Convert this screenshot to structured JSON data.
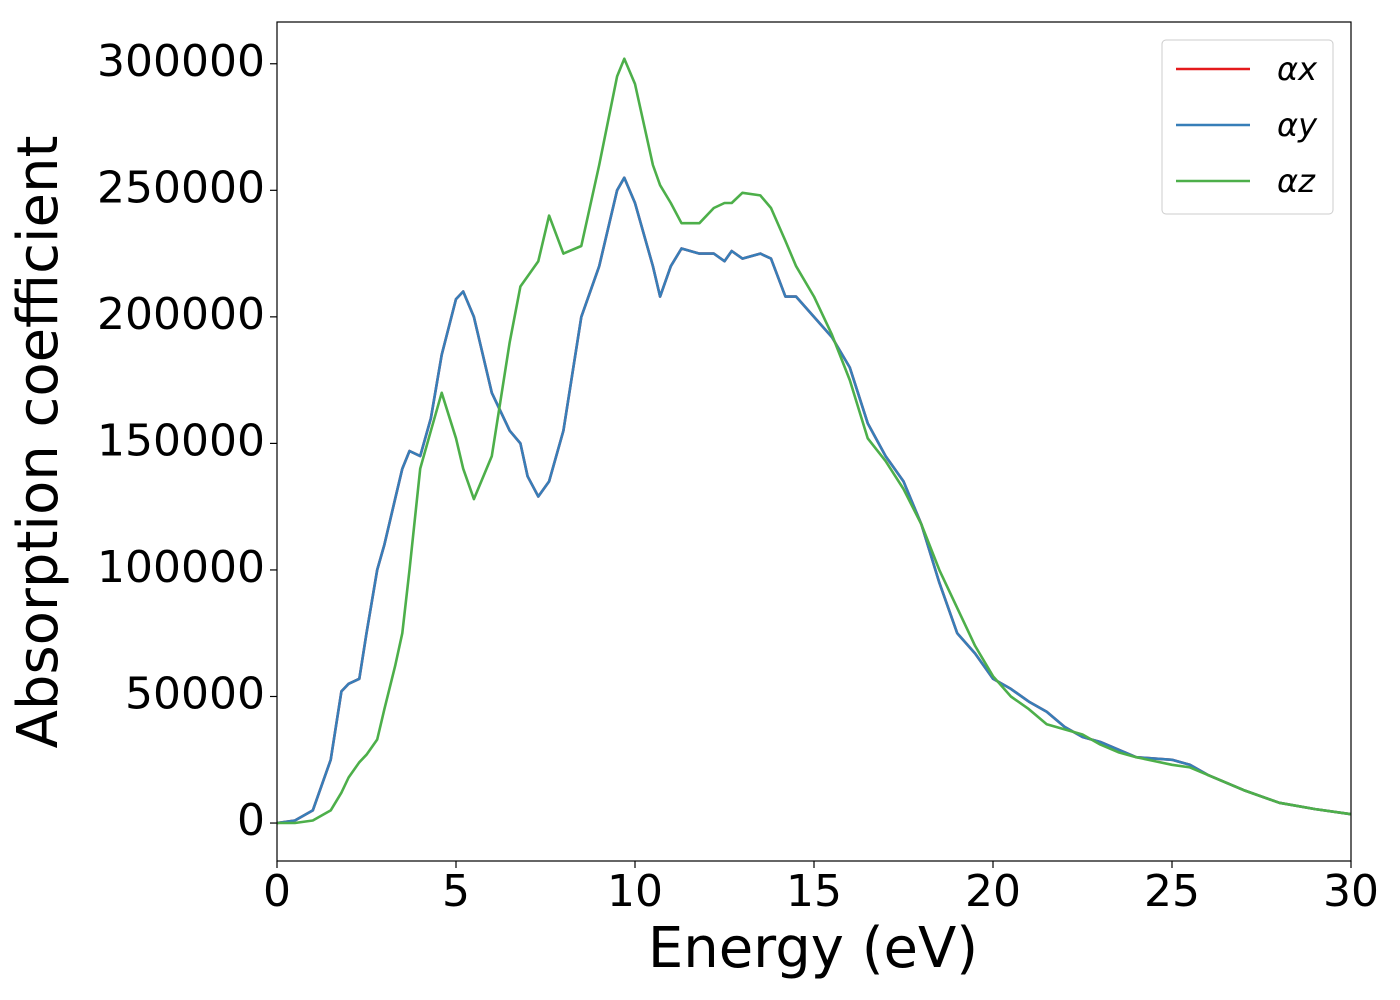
{
  "chart_data": {
    "type": "line",
    "xlabel": "Energy (eV)",
    "ylabel": "Absorption coefficient",
    "x": [
      0,
      0.5,
      1,
      1.5,
      1.8,
      2,
      2.3,
      2.5,
      2.8,
      3,
      3.3,
      3.5,
      3.7,
      4,
      4.3,
      4.6,
      5,
      5.2,
      5.5,
      6,
      6.5,
      6.8,
      7,
      7.3,
      7.6,
      8,
      8.5,
      9,
      9.5,
      9.7,
      10,
      10.5,
      10.7,
      11,
      11.3,
      11.8,
      12.2,
      12.5,
      12.7,
      13,
      13.5,
      13.8,
      14.2,
      14.5,
      15,
      15.5,
      16,
      16.5,
      17,
      17.5,
      18,
      18.5,
      19,
      19.5,
      20,
      20.5,
      21,
      21.5,
      22,
      22.5,
      23,
      23.5,
      24,
      25,
      25.5,
      26,
      27,
      28,
      29,
      30
    ],
    "series": [
      {
        "name": "αx",
        "color": "#e41a1c",
        "values": [
          0,
          1000,
          5000,
          25000,
          52000,
          55000,
          57000,
          75000,
          100000,
          110000,
          128000,
          140000,
          147000,
          145000,
          160000,
          185000,
          207000,
          210000,
          200000,
          170000,
          155000,
          150000,
          137000,
          129000,
          135000,
          155000,
          200000,
          220000,
          250000,
          255000,
          245000,
          220000,
          208000,
          220000,
          227000,
          225000,
          225000,
          222000,
          226000,
          223000,
          225000,
          223000,
          208000,
          208000,
          200000,
          192000,
          180000,
          158000,
          145000,
          135000,
          118000,
          95000,
          75000,
          67000,
          57000,
          53000,
          48000,
          44000,
          38000,
          34000,
          32000,
          29000,
          26000,
          25000,
          23000,
          19000,
          13000,
          8000,
          5500,
          3500
        ]
      },
      {
        "name": "αy",
        "color": "#377eb8",
        "values": [
          0,
          1000,
          5000,
          25000,
          52000,
          55000,
          57000,
          75000,
          100000,
          110000,
          128000,
          140000,
          147000,
          145000,
          160000,
          185000,
          207000,
          210000,
          200000,
          170000,
          155000,
          150000,
          137000,
          129000,
          135000,
          155000,
          200000,
          220000,
          250000,
          255000,
          245000,
          220000,
          208000,
          220000,
          227000,
          225000,
          225000,
          222000,
          226000,
          223000,
          225000,
          223000,
          208000,
          208000,
          200000,
          192000,
          180000,
          158000,
          145000,
          135000,
          118000,
          95000,
          75000,
          67000,
          57000,
          53000,
          48000,
          44000,
          38000,
          34000,
          32000,
          29000,
          26000,
          25000,
          23000,
          19000,
          13000,
          8000,
          5500,
          3500
        ]
      },
      {
        "name": "αz",
        "color": "#4daf4a",
        "values": [
          0,
          0,
          1000,
          5000,
          12000,
          18000,
          24000,
          27000,
          33000,
          45000,
          62000,
          75000,
          100000,
          140000,
          155000,
          170000,
          152000,
          140000,
          128000,
          145000,
          190000,
          212000,
          216000,
          222000,
          240000,
          225000,
          228000,
          260000,
          295000,
          302000,
          292000,
          260000,
          252000,
          245000,
          237000,
          237000,
          243000,
          245000,
          245000,
          249000,
          248000,
          243000,
          230000,
          220000,
          208000,
          193000,
          175000,
          152000,
          143000,
          132000,
          118000,
          100000,
          85000,
          70000,
          58000,
          50000,
          45000,
          39000,
          37000,
          35000,
          31000,
          28000,
          26000,
          23000,
          22000,
          19000,
          13000,
          8000,
          5500,
          3500
        ]
      }
    ],
    "xlim": [
      0,
      30
    ],
    "xticks": [
      0,
      5,
      10,
      15,
      20,
      25,
      30
    ],
    "ylim": [
      -15000,
      316500
    ],
    "yticks": [
      0,
      50000,
      100000,
      150000,
      200000,
      250000,
      300000
    ],
    "legend": "upper right",
    "grid": false
  }
}
